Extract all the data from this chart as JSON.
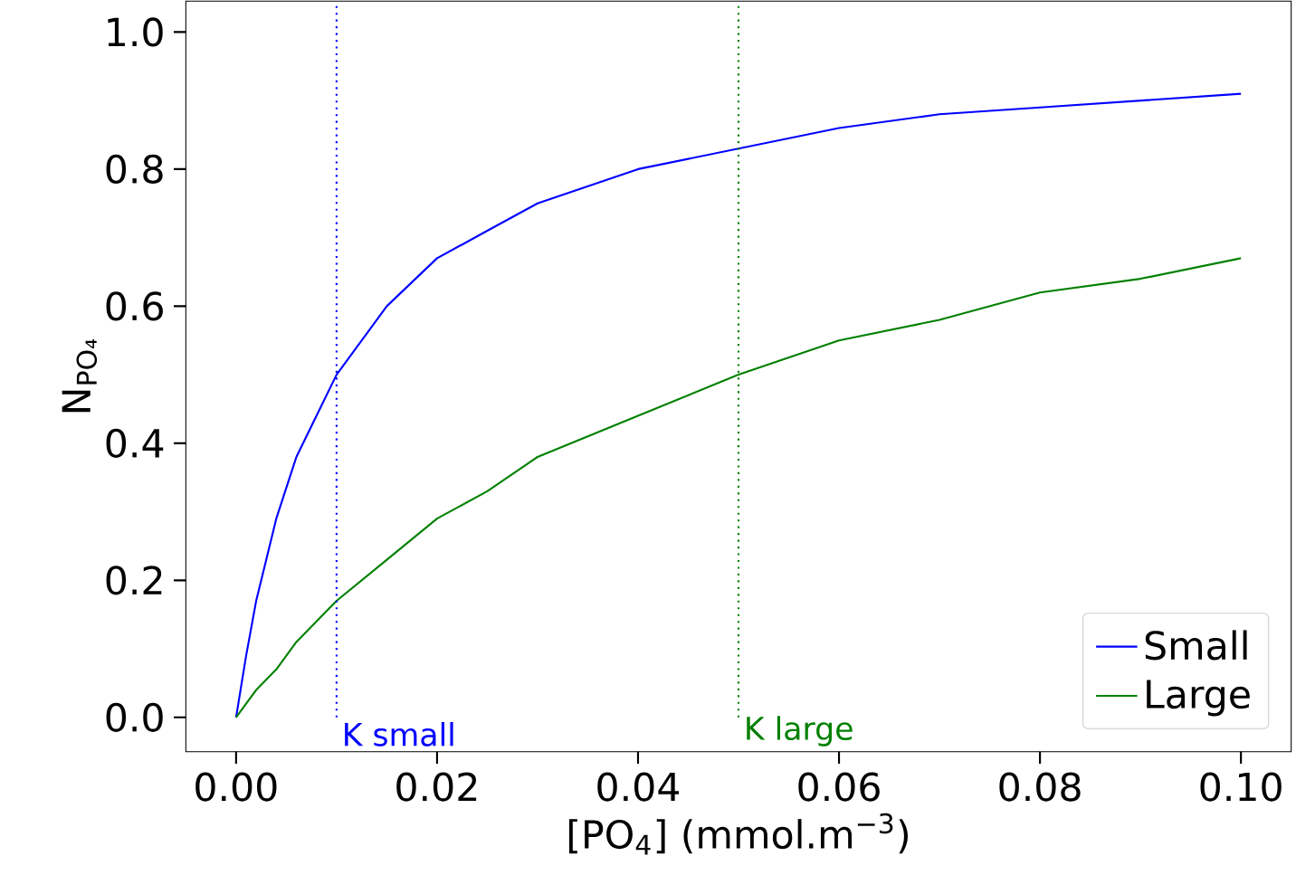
{
  "chart_data": {
    "type": "line",
    "xlabel": "[PO$_{4}$] (mmol.m$^{−3}$)",
    "ylabel": "N$_{PO₄}$",
    "xlim": [
      -0.005,
      0.105
    ],
    "ylim": [
      -0.05,
      1.045
    ],
    "xticks": [
      {
        "value": 0,
        "label": "0.00"
      },
      {
        "value": 0.02,
        "label": "0.02"
      },
      {
        "value": 0.04,
        "label": "0.04"
      },
      {
        "value": 0.06,
        "label": "0.06"
      },
      {
        "value": 0.08,
        "label": "0.08"
      },
      {
        "value": 0.1,
        "label": "0.10"
      }
    ],
    "yticks": [
      {
        "value": 0,
        "label": "0.0"
      },
      {
        "value": 0.2,
        "label": "0.2"
      },
      {
        "value": 0.4,
        "label": "0.4"
      },
      {
        "value": 0.6,
        "label": "0.6"
      },
      {
        "value": 0.8,
        "label": "0.8"
      },
      {
        "value": 1,
        "label": "1.0"
      }
    ],
    "x": [
      0,
      0.001,
      0.002,
      0.004,
      0.006,
      0.008,
      0.01,
      0.015,
      0.02,
      0.025,
      0.03,
      0.04,
      0.05,
      0.06,
      0.07,
      0.08,
      0.09,
      0.1
    ],
    "series": [
      {
        "name": "Small",
        "color": "#0000ff",
        "values": [
          0,
          0.09,
          0.17,
          0.29,
          0.38,
          0.44,
          0.5,
          0.6,
          0.67,
          0.71,
          0.75,
          0.8,
          0.83,
          0.86,
          0.88,
          0.89,
          0.9,
          0.91
        ]
      },
      {
        "name": "Large",
        "color": "#008000",
        "values": [
          0,
          0.02,
          0.04,
          0.07,
          0.11,
          0.14,
          0.17,
          0.23,
          0.29,
          0.33,
          0.38,
          0.44,
          0.5,
          0.55,
          0.58,
          0.62,
          0.64,
          0.67
        ]
      }
    ],
    "ref_lines": [
      {
        "axis": "x",
        "value": 0.01,
        "label": "K small",
        "color": "#0000ff",
        "line_style": "dotted"
      },
      {
        "axis": "x",
        "value": 0.05,
        "label": "K large",
        "color": "#008000",
        "line_style": "dotted"
      }
    ],
    "legend": "bottom right",
    "marker": "none",
    "line_style": "solid",
    "grid": false
  }
}
